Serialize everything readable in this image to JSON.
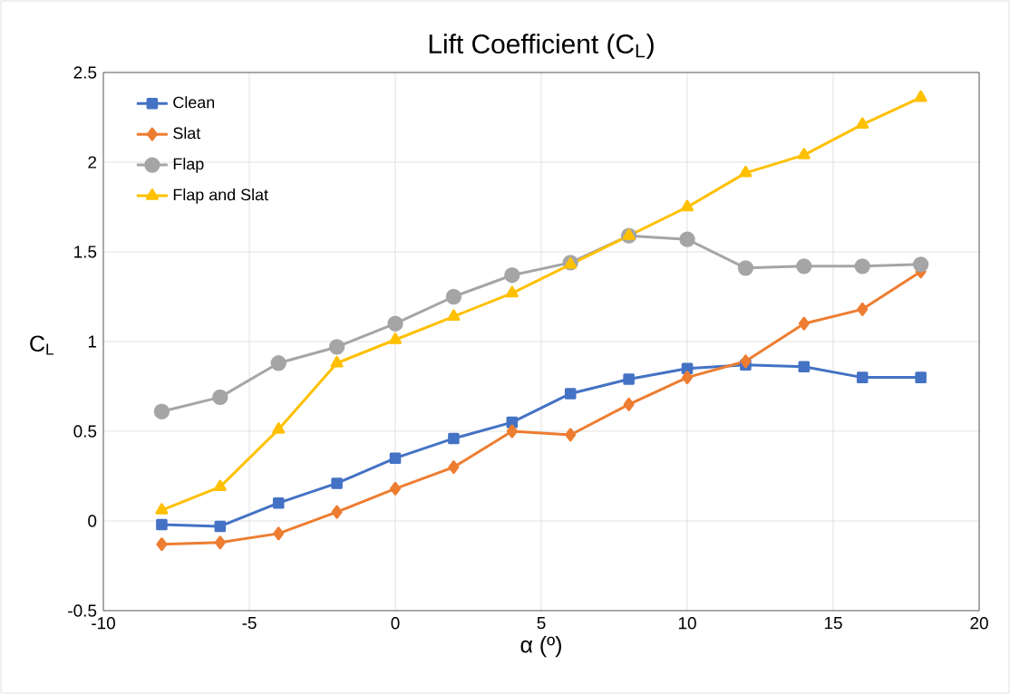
{
  "chart_data": {
    "type": "line",
    "title": "Lift Coefficient (C$_{L}$)",
    "xlabel": "α (º)",
    "ylabel": "C$_{L}$",
    "x": [
      -8,
      -6,
      -4,
      -2,
      0,
      2,
      4,
      6,
      8,
      10,
      12,
      14,
      16,
      18
    ],
    "series": [
      {
        "name": "Clean",
        "color": "#4472c4",
        "marker": "square",
        "values": [
          -0.02,
          -0.03,
          0.1,
          0.21,
          0.35,
          0.46,
          0.55,
          0.71,
          0.79,
          0.85,
          0.87,
          0.86,
          0.8,
          0.8
        ]
      },
      {
        "name": "Slat",
        "color": "#ed7d31",
        "marker": "diamond",
        "values": [
          -0.13,
          -0.12,
          -0.07,
          0.05,
          0.18,
          0.3,
          0.5,
          0.48,
          0.65,
          0.8,
          0.89,
          1.1,
          1.18,
          1.39
        ]
      },
      {
        "name": "Flap",
        "color": "#a5a5a5",
        "marker": "circle",
        "values": [
          0.61,
          0.69,
          0.88,
          0.97,
          1.1,
          1.25,
          1.37,
          1.44,
          1.59,
          1.57,
          1.41,
          1.42,
          1.42,
          1.43
        ]
      },
      {
        "name": "Flap and Slat",
        "color": "#ffc000",
        "marker": "triangle",
        "values": [
          0.06,
          0.19,
          0.51,
          0.88,
          1.01,
          1.14,
          1.27,
          1.43,
          1.59,
          1.75,
          1.94,
          2.04,
          2.21,
          2.36
        ]
      }
    ],
    "xlim": [
      -10,
      20
    ],
    "xticks": [
      -10,
      -5,
      0,
      5,
      10,
      15,
      20
    ],
    "ylim": [
      -0.5,
      2.5
    ],
    "yticks": [
      -0.5,
      0,
      0.5,
      1,
      1.5,
      2,
      2.5
    ],
    "grid": true,
    "legend": "top left",
    "line_style": "solid"
  }
}
